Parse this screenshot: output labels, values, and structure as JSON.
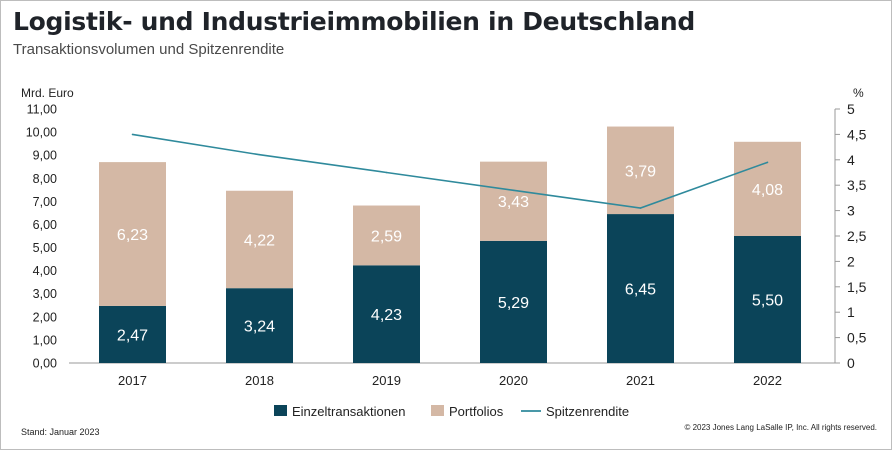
{
  "title": "Logistik- und Industrieimmobilien in Deutschland",
  "subtitle": "Transaktionsvolumen und Spitzenrendite",
  "footer": {
    "stand": "Stand: Januar 2023",
    "copyright": "© 2023 Jones Lang LaSalle IP, Inc. All rights reserved."
  },
  "colors": {
    "einzel": "#0b4459",
    "portfolio": "#d4b8a5",
    "line": "#2f8a9c"
  },
  "chart_data": {
    "type": "bar",
    "stacked": true,
    "categories": [
      "2017",
      "2018",
      "2019",
      "2020",
      "2021",
      "2022"
    ],
    "series": [
      {
        "name": "Einzeltransaktionen",
        "values": [
          2.47,
          3.24,
          4.23,
          5.29,
          6.45,
          5.5
        ],
        "labels": [
          "2,47",
          "3,24",
          "4,23",
          "5,29",
          "6,45",
          "5,50"
        ]
      },
      {
        "name": "Portfolios",
        "values": [
          6.23,
          4.22,
          2.59,
          3.43,
          3.79,
          4.08
        ],
        "labels": [
          "6,23",
          "4,22",
          "2,59",
          "3,43",
          "3,79",
          "4,08"
        ]
      }
    ],
    "line_series": {
      "name": "Spitzenrendite",
      "axis": "right",
      "values": [
        4.5,
        4.1,
        3.75,
        3.4,
        3.05,
        3.95
      ]
    },
    "ylabel": "Mrd. Euro",
    "ylim": [
      0,
      11
    ],
    "yticks": [
      "0,00",
      "1,00",
      "2,00",
      "3,00",
      "4,00",
      "5,00",
      "6,00",
      "7,00",
      "8,00",
      "9,00",
      "10,00",
      "11,00"
    ],
    "y2label": "%",
    "y2lim": [
      0,
      5
    ],
    "y2ticks": [
      "0",
      "0,5",
      "1",
      "1,5",
      "2",
      "2,5",
      "3",
      "3,5",
      "4",
      "4,5",
      "5"
    ],
    "legend_position": "bottom",
    "grid": false
  }
}
